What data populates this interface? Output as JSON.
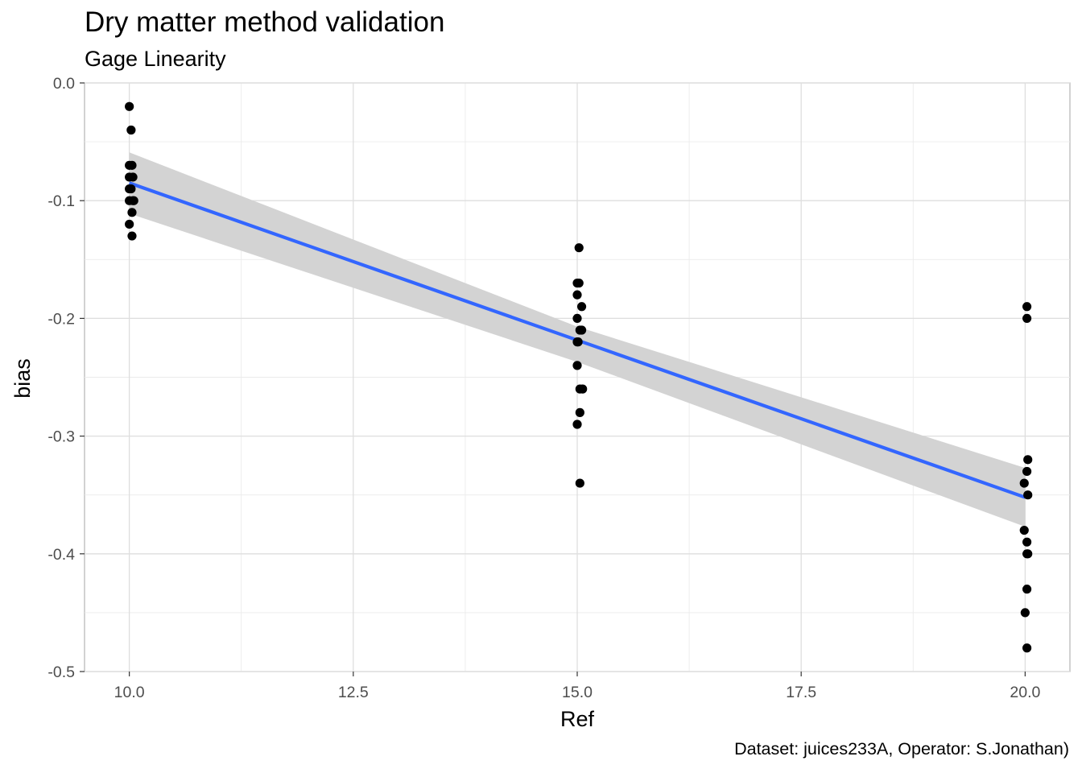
{
  "chart_data": {
    "type": "scatter",
    "title": "Dry matter method validation",
    "subtitle": "Gage Linearity",
    "caption": "Dataset: juices233A, Operator: S.Jonathan)",
    "xlabel": "Ref",
    "ylabel": "bias",
    "xlim": [
      9.5,
      20.5
    ],
    "ylim": [
      -0.5,
      0.0
    ],
    "x_ticks": [
      10.0,
      12.5,
      15.0,
      17.5,
      20.0
    ],
    "x_tick_labels": [
      "10.0",
      "12.5",
      "15.0",
      "17.5",
      "20.0"
    ],
    "y_ticks": [
      0.0,
      -0.1,
      -0.2,
      -0.3,
      -0.4,
      -0.5
    ],
    "y_tick_labels": [
      "0.0",
      "-0.1",
      "-0.2",
      "-0.3",
      "-0.4",
      "-0.5"
    ],
    "grid": true,
    "points": {
      "color": "#000000",
      "x": [
        10.0,
        10.02,
        10.0,
        10.03,
        10.0,
        10.04,
        10.0,
        10.02,
        10.05,
        10.0,
        10.04,
        10.03,
        10.0,
        10.03,
        15.02,
        15.0,
        15.02,
        15.0,
        15.05,
        15.0,
        15.03,
        15.05,
        15.0,
        15.01,
        15.0,
        15.03,
        15.06,
        15.03,
        15.0,
        15.03,
        20.02,
        20.02,
        20.03,
        20.02,
        19.99,
        20.03,
        19.99,
        20.02,
        20.03,
        20.02,
        20.02,
        20.0,
        20.02
      ],
      "y": [
        -0.02,
        -0.04,
        -0.07,
        -0.07,
        -0.08,
        -0.08,
        -0.09,
        -0.09,
        -0.1,
        -0.1,
        -0.1,
        -0.11,
        -0.12,
        -0.13,
        -0.14,
        -0.17,
        -0.17,
        -0.18,
        -0.19,
        -0.2,
        -0.21,
        -0.21,
        -0.22,
        -0.22,
        -0.24,
        -0.26,
        -0.26,
        -0.28,
        -0.29,
        -0.34,
        -0.19,
        -0.2,
        -0.32,
        -0.33,
        -0.34,
        -0.35,
        -0.38,
        -0.39,
        -0.4,
        -0.4,
        -0.43,
        -0.45,
        -0.48
      ]
    },
    "trend_line": {
      "method": "lm",
      "color": "#3366ff",
      "x": [
        10.0,
        20.0
      ],
      "y": [
        -0.085,
        -0.352
      ]
    },
    "confidence_band": {
      "color": "#d3d3d3",
      "x": [
        10.0,
        15.0,
        20.0
      ],
      "upper": [
        -0.059,
        -0.207,
        -0.327
      ],
      "lower": [
        -0.111,
        -0.237,
        -0.377
      ]
    }
  }
}
